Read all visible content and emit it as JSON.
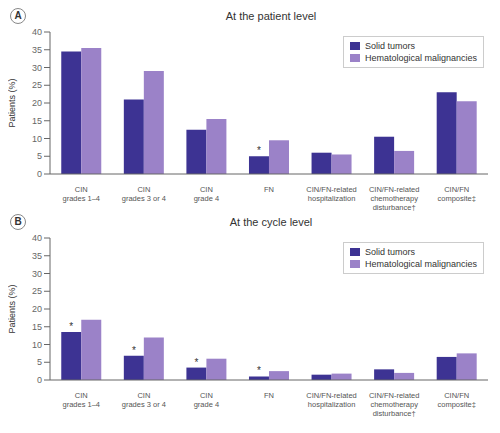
{
  "chart_data": [
    {
      "type": "bar",
      "title": "At the patient level",
      "categories": [
        "CIN\ngrades 1–4",
        "CIN\ngrades 3 or 4",
        "CIN\ngrade 4",
        "FN",
        "CIN/FN-related\nhospitalization",
        "CIN/FN-related\nchemotherapy\ndisturbance†",
        "CIN/FN\ncomposite‡"
      ],
      "series": [
        {
          "name": "Solid tumors",
          "color": "#3d3393",
          "values": [
            34.5,
            21.0,
            12.5,
            5.0,
            6.0,
            10.5,
            23.0
          ]
        },
        {
          "name": "Hematological malignancies",
          "color": "#9b82c8",
          "values": [
            35.5,
            29.0,
            15.5,
            9.5,
            5.5,
            6.5,
            20.5
          ]
        }
      ],
      "ylabel": "Patients (%)",
      "ylim": [
        0,
        40
      ],
      "yticks": [
        0,
        5,
        10,
        15,
        20,
        25,
        30,
        35,
        40
      ],
      "grid": false,
      "legend": "upper right",
      "annotations": [
        {
          "text": "A"
        },
        {
          "text": "*",
          "category": "FN",
          "series": "Solid tumors"
        }
      ]
    },
    {
      "type": "bar",
      "title": "At the cycle level",
      "categories": [
        "CIN\ngrades 1–4",
        "CIN\ngrades 3 or 4",
        "CIN\ngrade 4",
        "FN",
        "CIN/FN-related\nhospitalization",
        "CIN/FN-related\nchemotherapy\ndisturbance†",
        "CIN/FN\ncomposite‡"
      ],
      "series": [
        {
          "name": "Solid tumors",
          "color": "#3d3393",
          "values": [
            13.5,
            6.8,
            3.5,
            1.0,
            1.5,
            3.0,
            6.5
          ]
        },
        {
          "name": "Hematological malignancies",
          "color": "#9b82c8",
          "values": [
            17.0,
            12.0,
            6.0,
            2.5,
            1.8,
            2.0,
            7.5
          ]
        }
      ],
      "ylabel": "Patients (%)",
      "ylim": [
        0,
        40
      ],
      "yticks": [
        0,
        5,
        10,
        15,
        20,
        25,
        30,
        35,
        40
      ],
      "grid": false,
      "legend": "upper right",
      "annotations": [
        {
          "text": "B"
        },
        {
          "text": "*",
          "category": "CIN\ngrades 1–4",
          "series": "Solid tumors"
        },
        {
          "text": "*",
          "category": "CIN\ngrades 3 or 4",
          "series": "Solid tumors"
        },
        {
          "text": "*",
          "category": "CIN\ngrade 4",
          "series": "Solid tumors"
        },
        {
          "text": "*",
          "category": "FN",
          "series": "Solid tumors"
        }
      ]
    }
  ]
}
